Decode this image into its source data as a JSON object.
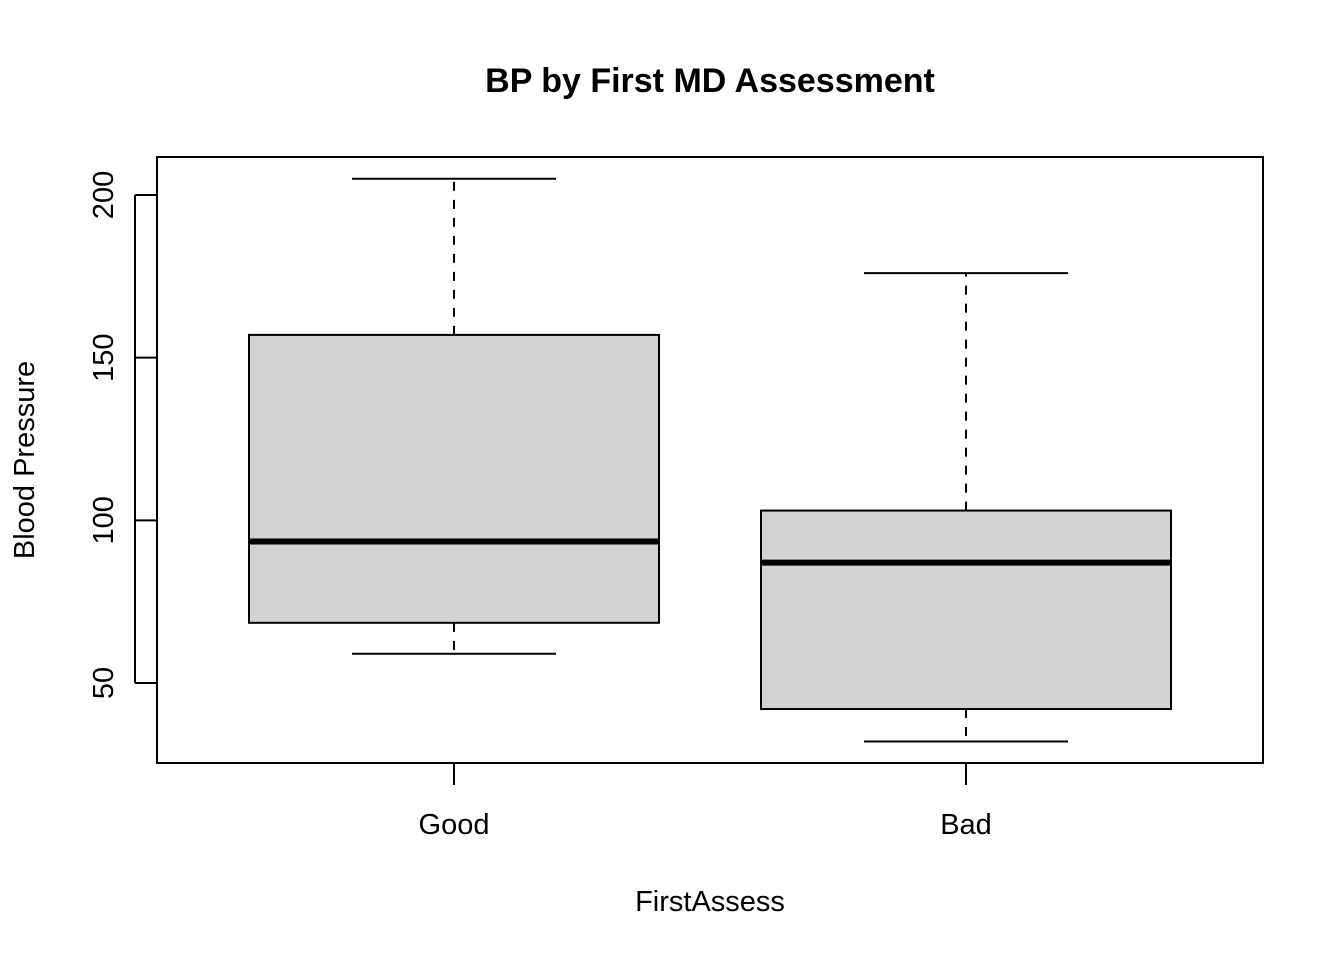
{
  "chart_data": {
    "type": "boxplot",
    "title": "BP by First MD Assessment",
    "xlabel": "FirstAssess",
    "ylabel": "Blood Pressure",
    "ylim": [
      25,
      210
    ],
    "yticks": [
      50,
      100,
      150,
      200
    ],
    "categories": [
      "Good",
      "Bad"
    ],
    "boxes": [
      {
        "category": "Good",
        "whisker_low": 59,
        "q1": 68.5,
        "median": 93.5,
        "q3": 157,
        "whisker_high": 205
      },
      {
        "category": "Bad",
        "whisker_low": 32,
        "q1": 42,
        "median": 87,
        "q3": 103,
        "whisker_high": 176
      }
    ],
    "grid": false,
    "colors": {
      "box_fill": "#d3d3d3",
      "stroke": "#000000"
    }
  }
}
